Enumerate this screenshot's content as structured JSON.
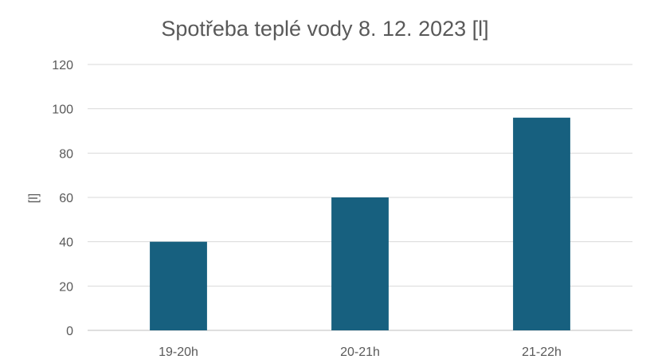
{
  "chart_data": {
    "type": "bar",
    "title": "Spotřeba teplé vody 8. 12. 2023 [l]",
    "xlabel": "",
    "ylabel": "[l]",
    "categories": [
      "19-20h",
      "20-21h",
      "21-22h"
    ],
    "values": [
      40,
      60,
      96
    ],
    "ylim": [
      0,
      120
    ],
    "yticks": [
      0,
      20,
      40,
      60,
      80,
      100,
      120
    ],
    "grid": true,
    "legend": "none",
    "bar_color": "#17607f"
  }
}
